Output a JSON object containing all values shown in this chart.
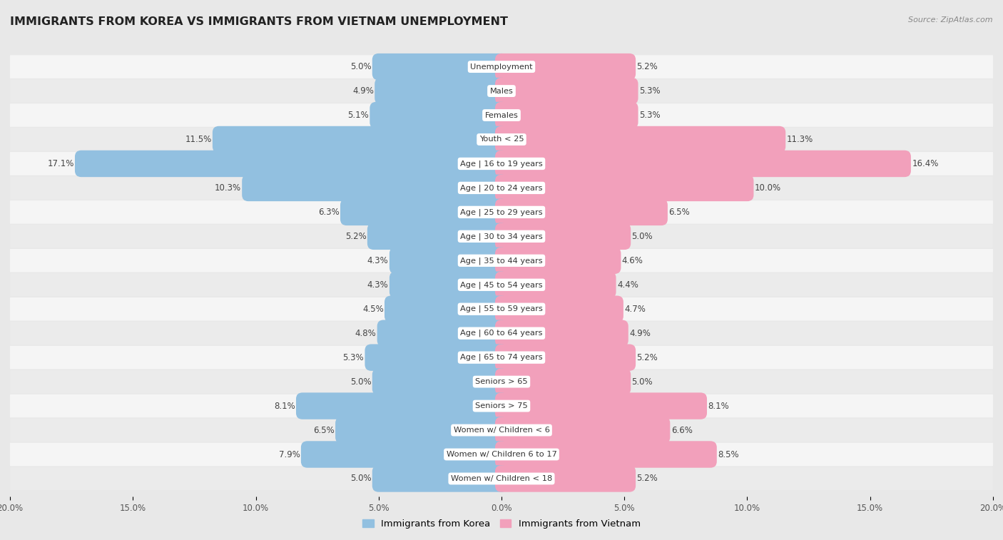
{
  "title": "IMMIGRANTS FROM KOREA VS IMMIGRANTS FROM VIETNAM UNEMPLOYMENT",
  "source": "Source: ZipAtlas.com",
  "categories": [
    "Unemployment",
    "Males",
    "Females",
    "Youth < 25",
    "Age | 16 to 19 years",
    "Age | 20 to 24 years",
    "Age | 25 to 29 years",
    "Age | 30 to 34 years",
    "Age | 35 to 44 years",
    "Age | 45 to 54 years",
    "Age | 55 to 59 years",
    "Age | 60 to 64 years",
    "Age | 65 to 74 years",
    "Seniors > 65",
    "Seniors > 75",
    "Women w/ Children < 6",
    "Women w/ Children 6 to 17",
    "Women w/ Children < 18"
  ],
  "korea_values": [
    5.0,
    4.9,
    5.1,
    11.5,
    17.1,
    10.3,
    6.3,
    5.2,
    4.3,
    4.3,
    4.5,
    4.8,
    5.3,
    5.0,
    8.1,
    6.5,
    7.9,
    5.0
  ],
  "vietnam_values": [
    5.2,
    5.3,
    5.3,
    11.3,
    16.4,
    10.0,
    6.5,
    5.0,
    4.6,
    4.4,
    4.7,
    4.9,
    5.2,
    5.0,
    8.1,
    6.6,
    8.5,
    5.2
  ],
  "korea_color": "#92C0E0",
  "vietnam_color": "#F2A0BB",
  "row_colors": [
    "#f5f5f5",
    "#ebebeb"
  ],
  "background_color": "#e8e8e8",
  "axis_max": 20.0,
  "legend_label_korea": "Immigrants from Korea",
  "legend_label_vietnam": "Immigrants from Vietnam"
}
